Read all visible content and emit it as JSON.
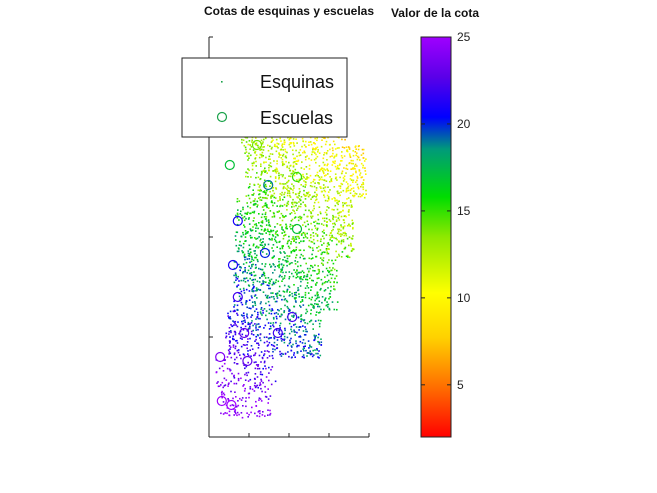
{
  "chart_data": {
    "type": "scatter",
    "title": "Cotas de esquinas y escuelas",
    "colorbar": {
      "title": "Valor de la cota",
      "min": 2,
      "max": 25,
      "ticks": [
        5,
        10,
        15,
        20,
        25
      ],
      "tick_labels": [
        "5",
        "10",
        "15",
        "20",
        "25"
      ],
      "colormap": "prism-like (red → orange → yellow → green → blue → violet)"
    },
    "legend": {
      "placement": "top-left",
      "entries": [
        {
          "label": "Esquinas",
          "marker": "dot"
        },
        {
          "label": "Escuelas",
          "marker": "circle"
        }
      ]
    },
    "axes": {
      "x_tick_labels": [],
      "y_tick_labels": [],
      "grid": false
    },
    "series": [
      {
        "name": "Esquinas",
        "note": "Dense cloud of street-corner points coloured by elevation; values range roughly 2–25",
        "value_range": [
          2,
          25
        ]
      },
      {
        "name": "Escuelas",
        "points": [
          {
            "label": "",
            "x": 0.08,
            "y": 0.09,
            "cota": 25
          },
          {
            "label": "",
            "x": 0.14,
            "y": 0.08,
            "cota": 25
          },
          {
            "label": "",
            "x": 0.07,
            "y": 0.2,
            "cota": 24
          },
          {
            "label": "",
            "x": 0.24,
            "y": 0.19,
            "cota": 23
          },
          {
            "label": "",
            "x": 0.43,
            "y": 0.26,
            "cota": 22
          },
          {
            "label": "",
            "x": 0.22,
            "y": 0.26,
            "cota": 23
          },
          {
            "label": "",
            "x": 0.18,
            "y": 0.35,
            "cota": 22
          },
          {
            "label": "",
            "x": 0.52,
            "y": 0.3,
            "cota": 22
          },
          {
            "label": "",
            "x": 0.15,
            "y": 0.43,
            "cota": 21
          },
          {
            "label": "",
            "x": 0.35,
            "y": 0.46,
            "cota": 20
          },
          {
            "label": "",
            "x": 0.55,
            "y": 0.52,
            "cota": 17
          },
          {
            "label": "",
            "x": 0.18,
            "y": 0.54,
            "cota": 21
          },
          {
            "label": "",
            "x": 0.37,
            "y": 0.63,
            "cota": 19
          },
          {
            "label": "",
            "x": 0.55,
            "y": 0.65,
            "cota": 15
          },
          {
            "label": "",
            "x": 0.13,
            "y": 0.68,
            "cota": 17
          },
          {
            "label": "",
            "x": 0.3,
            "y": 0.73,
            "cota": 14
          },
          {
            "label": "",
            "x": 0.18,
            "y": 0.77,
            "cota": 18
          },
          {
            "label": "",
            "x": 0.45,
            "y": 0.81,
            "cota": 11
          },
          {
            "label": "",
            "x": 0.2,
            "y": 0.9,
            "cota": 19
          },
          {
            "label": "",
            "x": 0.24,
            "y": 0.82,
            "cota": 18
          }
        ]
      }
    ]
  }
}
